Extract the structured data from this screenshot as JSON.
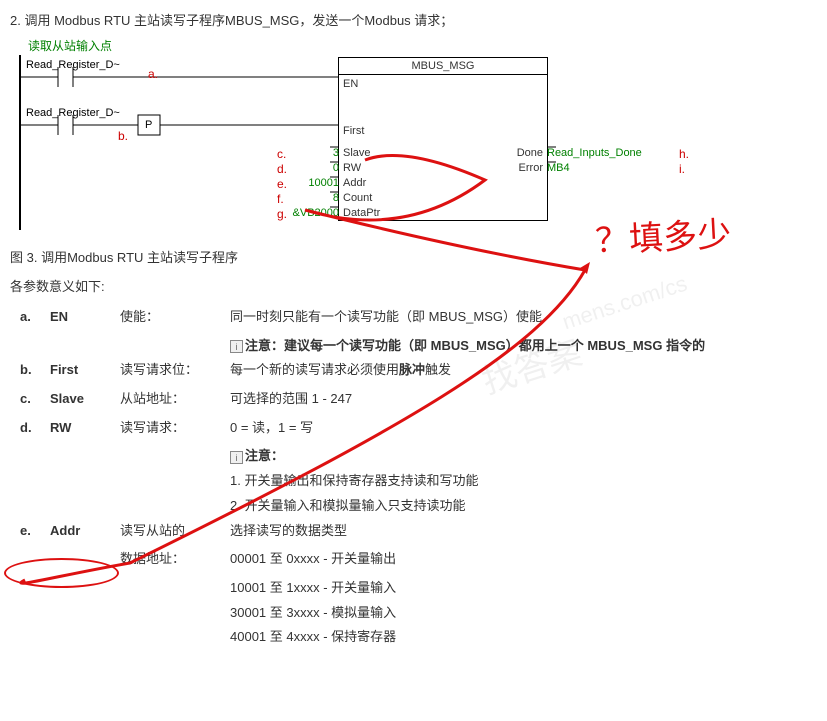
{
  "title": "2. 调用 Modbus RTU 主站读写子程序MBUS_MSG，发送一个Modbus 请求；",
  "diagram": {
    "greenLabel": "读取从站输入点",
    "contact1": "Read_Register_D~",
    "contact2": "Read_Register_D~",
    "pBox": "P",
    "block": {
      "header": "MBUS_MSG",
      "en": "EN",
      "first": "First",
      "rows": [
        {
          "letter": "c.",
          "val": "3",
          "name": "Slave",
          "out": "Done",
          "outVal": "Read_Inputs_Done",
          "outLetter": "h."
        },
        {
          "letter": "d.",
          "val": "0",
          "name": "RW",
          "out": "Error",
          "outVal": "MB4",
          "outLetter": "i."
        },
        {
          "letter": "e.",
          "val": "10001",
          "name": "Addr"
        },
        {
          "letter": "f.",
          "val": "8",
          "name": "Count"
        },
        {
          "letter": "g.",
          "val": "&VB2000",
          "name": "DataPtr"
        }
      ]
    },
    "aLetter": "a.",
    "bLetter": "b."
  },
  "caption": "图 3. 调用Modbus RTU 主站读写子程序",
  "paramIntro": "各参数意义如下:",
  "params": {
    "a": {
      "name": "EN",
      "label": "使能：",
      "desc": "同一时刻只能有一个读写功能（即 MBUS_MSG）使能",
      "note": "注意：建议每一个读写功能（即 MBUS_MSG）都用上一个 MBUS_MSG 指令的"
    },
    "b": {
      "name": "First",
      "label": "读写请求位：",
      "desc": "每一个新的读写请求必须使用脉冲触发"
    },
    "c": {
      "name": "Slave",
      "label": "从站地址：",
      "desc": "可选择的范围  1 - 247"
    },
    "d": {
      "name": "RW",
      "label": "读写请求：",
      "desc": "0 = 读，1 = 写",
      "noteHead": "注意：",
      "note1": "1. 开关量输出和保持寄存器支持读和写功能",
      "note2": "2. 开关量输入和模拟量输入只支持读功能"
    },
    "e": {
      "name": "Addr",
      "label1": "读写从站的",
      "label2": "数据地址：",
      "desc0": "选择读写的数据类型",
      "desc1": "00001 至 0xxxx - 开关量输出",
      "desc2": "10001 至 1xxxx - 开关量输入",
      "desc3": "30001 至 3xxxx - 模拟量输入",
      "desc4": "40001 至 4xxxx - 保持寄存器"
    }
  },
  "handText": "？填多少",
  "watermark1": "找答案",
  "watermark2": "mens.com/cs"
}
